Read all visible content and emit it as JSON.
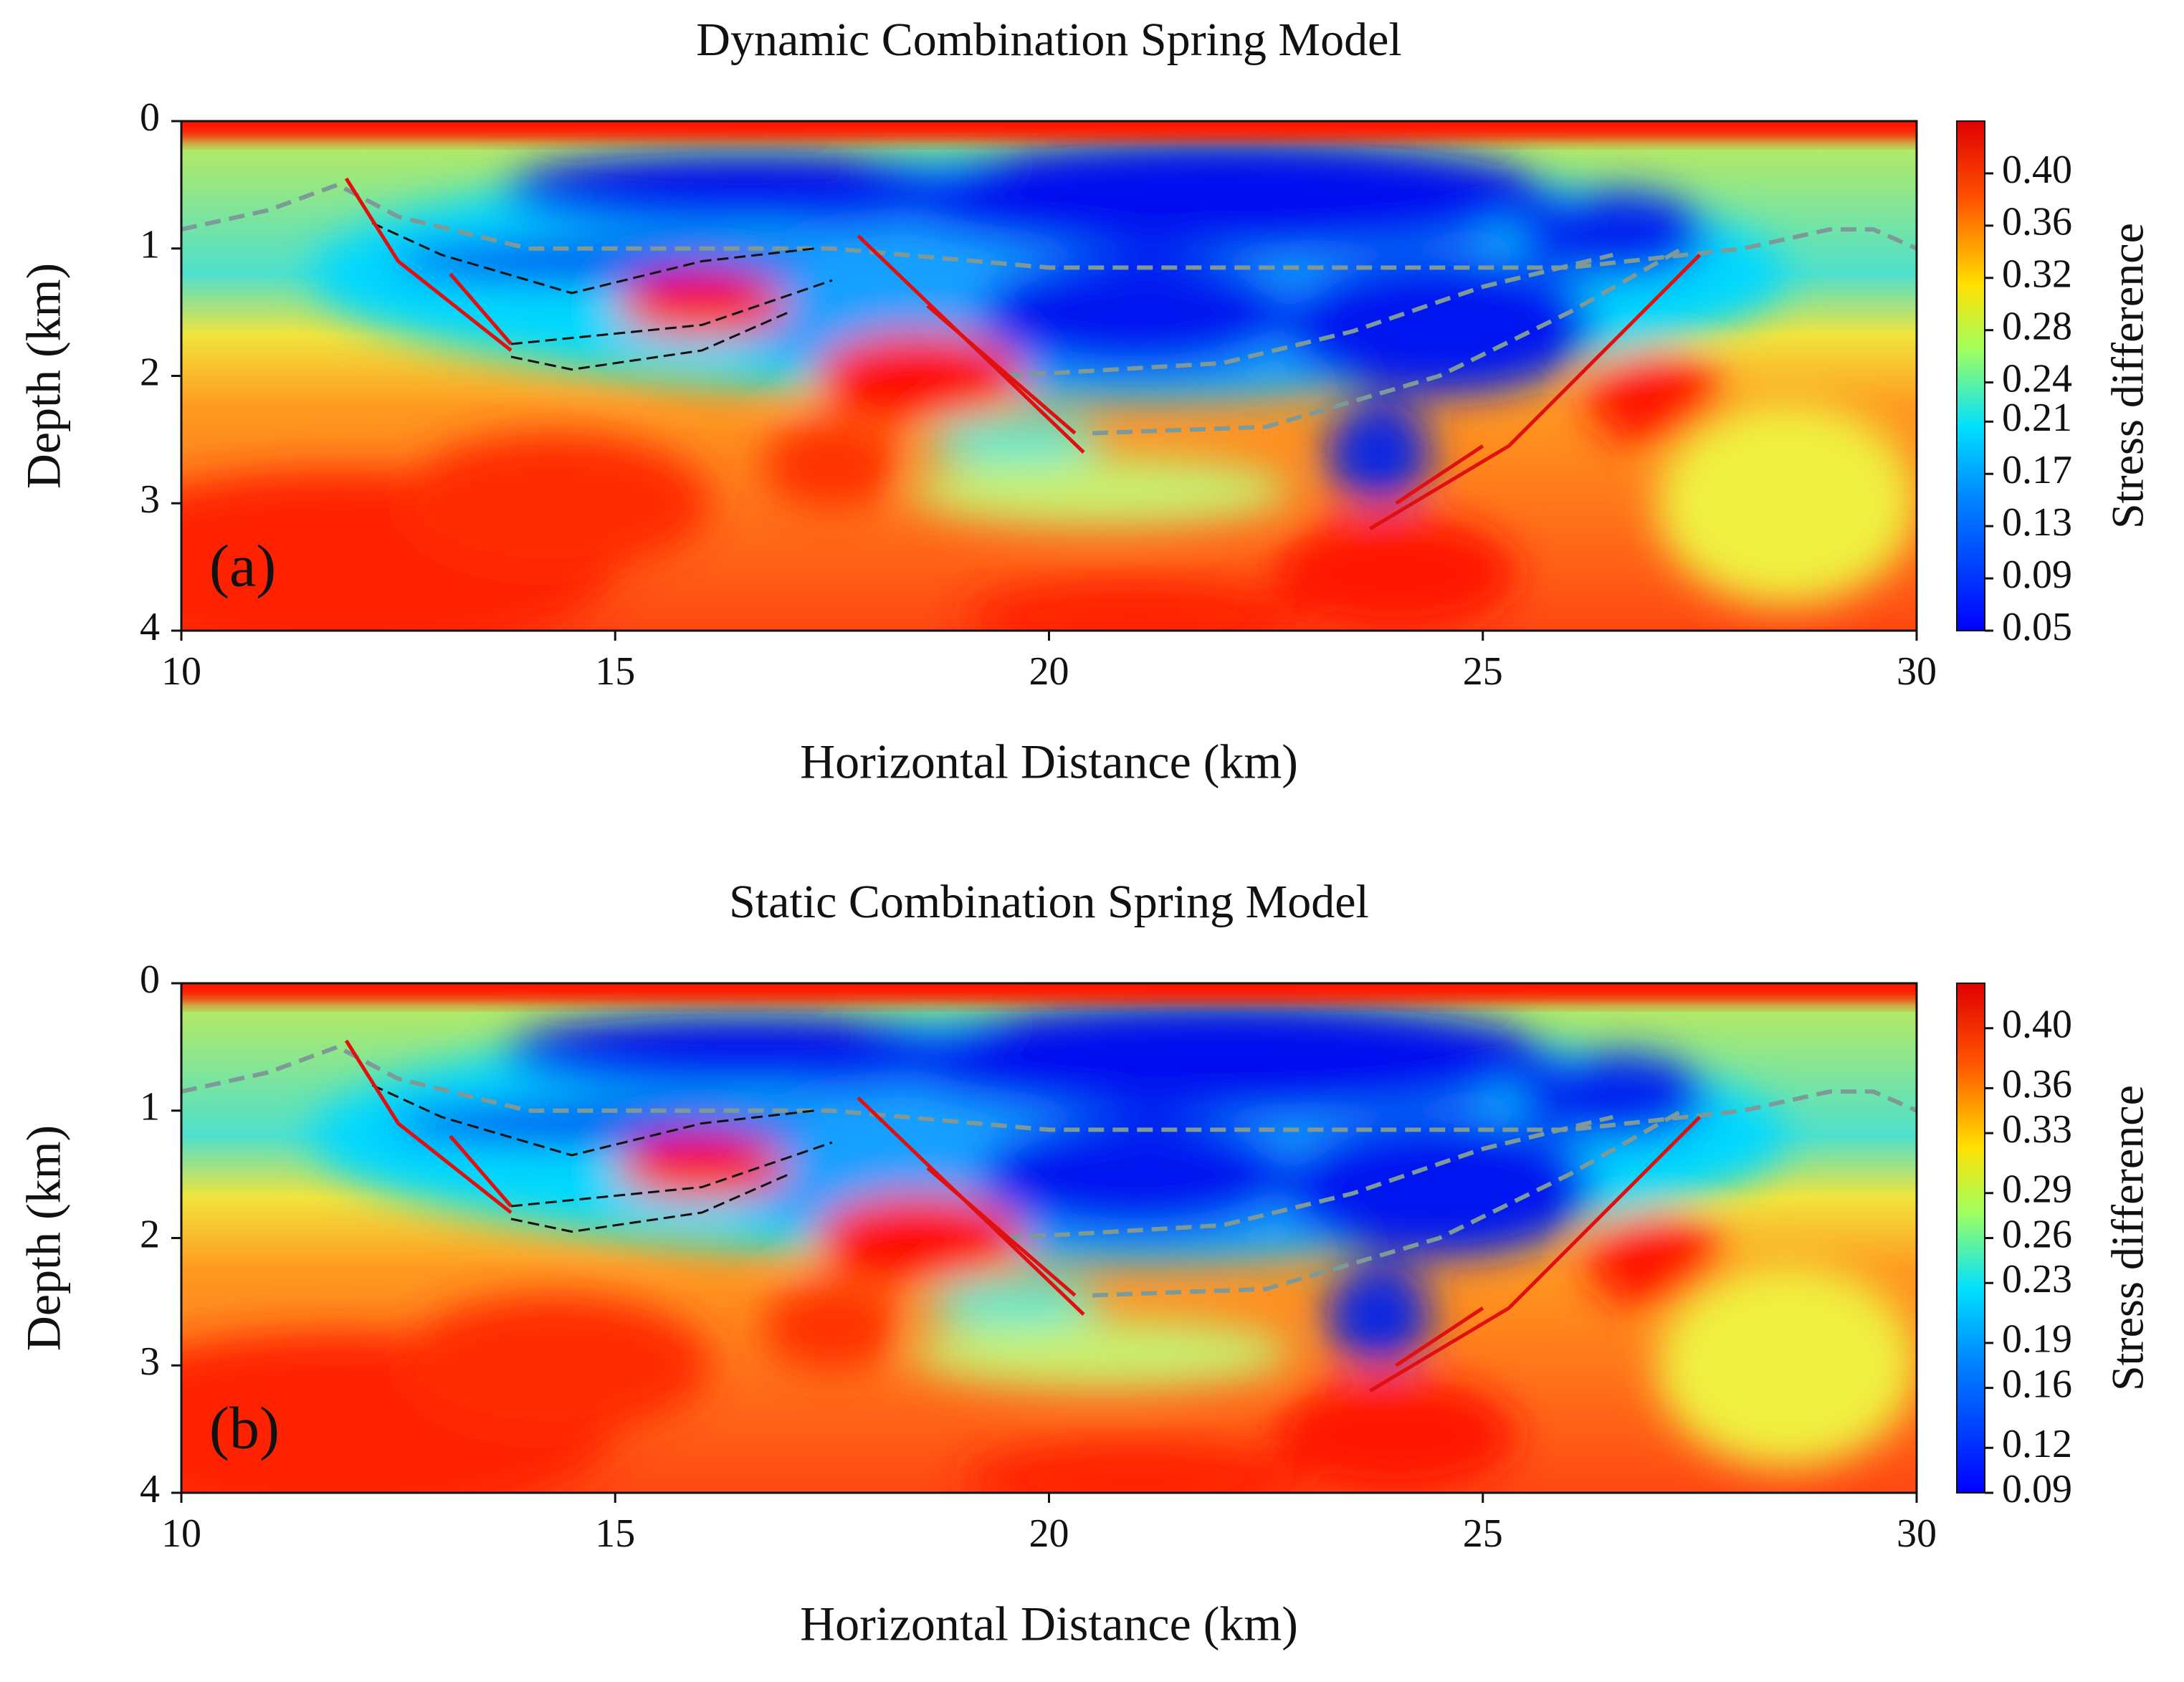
{
  "chart_data": [
    {
      "type": "heatmap",
      "title": "Dynamic Combination Spring Model",
      "panel_label": "(a)",
      "xlabel": "Horizontal Distance (km)",
      "ylabel": "Depth (km)",
      "xlim": [
        10,
        30
      ],
      "xticks": [
        10,
        15,
        20,
        25,
        30
      ],
      "ylim": [
        4,
        0
      ],
      "yticks": [
        0,
        1,
        2,
        3,
        4
      ],
      "colorbar_label": "Stress difference",
      "clim": [
        0.05,
        0.44
      ],
      "cticks": [
        0.05,
        0.09,
        0.13,
        0.17,
        0.21,
        0.24,
        0.28,
        0.32,
        0.36,
        {
          "value": 0.4,
          "label": "0.40"
        }
      ],
      "colormap": "jet"
    },
    {
      "type": "heatmap",
      "title": "Static Combination Spring Model",
      "panel_label": "(b)",
      "xlabel": "Horizontal Distance (km)",
      "ylabel": "Depth (km)",
      "xlim": [
        10,
        30
      ],
      "xticks": [
        10,
        15,
        20,
        25,
        30
      ],
      "ylim": [
        4,
        0
      ],
      "yticks": [
        0,
        1,
        2,
        3,
        4
      ],
      "colorbar_label": "Stress difference",
      "clim": [
        0.09,
        0.43
      ],
      "cticks": [
        0.09,
        0.12,
        0.16,
        0.19,
        0.23,
        0.26,
        0.29,
        0.33,
        0.36,
        {
          "value": 0.4,
          "label": "0.40"
        }
      ],
      "colormap": "jet"
    }
  ]
}
